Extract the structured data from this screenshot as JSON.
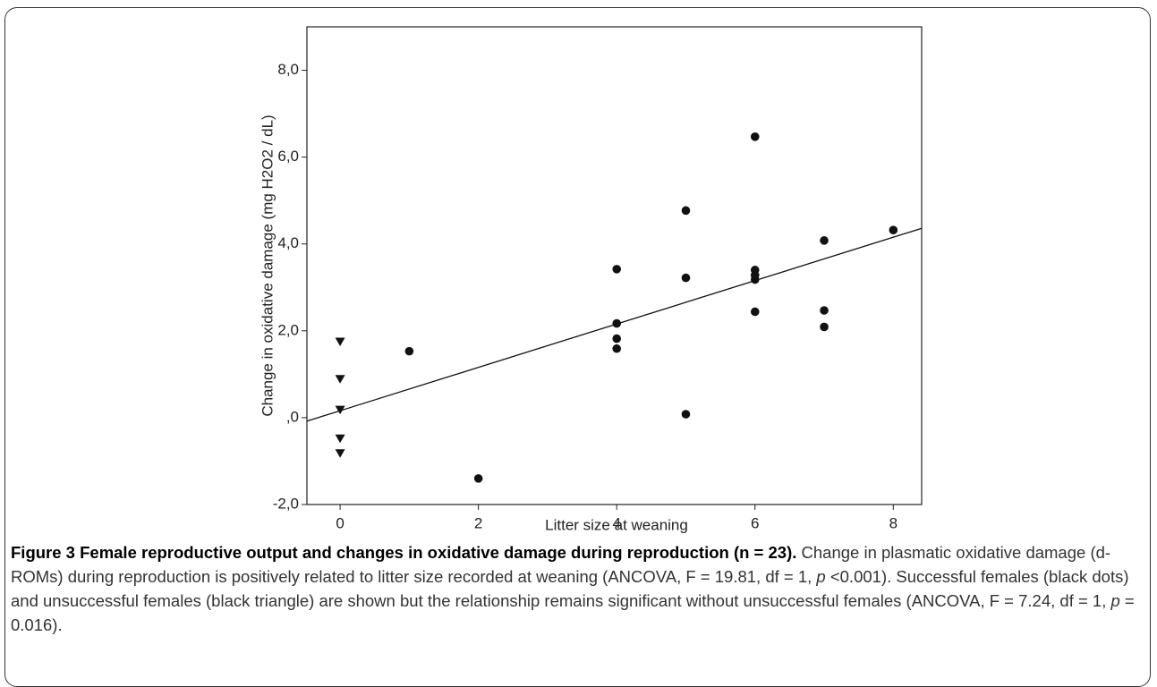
{
  "chart_data": {
    "type": "scatter",
    "x_label": "Litter size at weaning",
    "y_label": "Change in oxidative damage (mg H2O2 / dL)",
    "xlim": [
      -0.48,
      8.41
    ],
    "ylim": [
      -2.0,
      9.0
    ],
    "xticks": [
      0,
      2,
      4,
      6,
      8
    ],
    "yticks": [
      {
        "value": -2,
        "label": "-2,0"
      },
      {
        "value": 0,
        "label": ",0"
      },
      {
        "value": 2,
        "label": "2,0"
      },
      {
        "value": 4,
        "label": "4,0"
      },
      {
        "value": 6,
        "label": "6,0"
      },
      {
        "value": 8,
        "label": "8,0"
      }
    ],
    "series": [
      {
        "type": "scatter",
        "marker": "circle",
        "color": "#111111",
        "x": [
          1,
          2,
          4,
          4,
          4,
          4,
          5,
          5,
          5,
          6,
          6,
          6,
          6,
          6,
          7,
          7,
          7,
          8
        ],
        "y": [
          1.53,
          -1.4,
          3.42,
          2.17,
          1.82,
          1.59,
          4.77,
          3.22,
          0.08,
          6.47,
          3.4,
          3.28,
          3.18,
          2.44,
          4.08,
          2.47,
          2.09,
          4.32
        ]
      },
      {
        "type": "scatter",
        "marker": "triangle",
        "color": "#111111",
        "x": [
          0,
          0,
          0,
          0,
          0
        ],
        "y": [
          1.75,
          0.89,
          0.18,
          -0.48,
          -0.82
        ]
      },
      {
        "type": "line",
        "color": "#111111",
        "x": [
          -0.48,
          8.41
        ],
        "y": [
          -0.08,
          4.36
        ]
      }
    ],
    "caption": {
      "title": "Figure 3 Female reproductive output and changes in oxidative damage during reproduction (n = 23).",
      "text": [
        " Change in plasmatic oxidative damage (d-ROMs) during reproduction is positively related to litter size recorded at weaning (ANCOVA, F = 19.81, df = 1, ",
        "p",
        " <0.001). Successful females (black dots) and unsuccessful females (black triangle) are shown but the relationship remains significant without unsuccessful females (ANCOVA, F = 7.24, df = 1, ",
        "p",
        " = 0.016)."
      ]
    }
  }
}
